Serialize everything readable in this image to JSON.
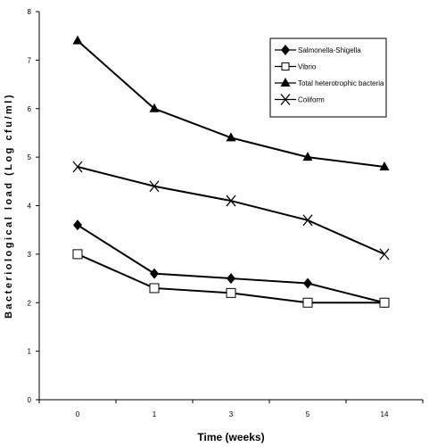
{
  "chart_data": {
    "type": "line",
    "categories": [
      "0",
      "1",
      "3",
      "5",
      "14"
    ],
    "xlabel": "Time (weeks)",
    "ylabel": "Bacteriological load (Log cfu/ml)",
    "ylim": [
      0,
      8
    ],
    "yticks": [
      0,
      1,
      2,
      3,
      4,
      5,
      6,
      7,
      8
    ],
    "grid": false,
    "legend_position": "top-right",
    "series": [
      {
        "name": "Salmonella-Shigella",
        "marker": "diamond",
        "values": [
          3.6,
          2.6,
          2.5,
          2.4,
          2.0
        ]
      },
      {
        "name": "Vibrio",
        "marker": "square-open",
        "values": [
          3.0,
          2.3,
          2.2,
          2.0,
          2.0
        ]
      },
      {
        "name": "Total heterotrophic bacteria",
        "marker": "triangle",
        "values": [
          7.4,
          6.0,
          5.4,
          5.0,
          4.8
        ]
      },
      {
        "name": "Coliform",
        "marker": "x",
        "values": [
          4.8,
          4.4,
          4.1,
          3.7,
          3.0
        ]
      }
    ]
  }
}
